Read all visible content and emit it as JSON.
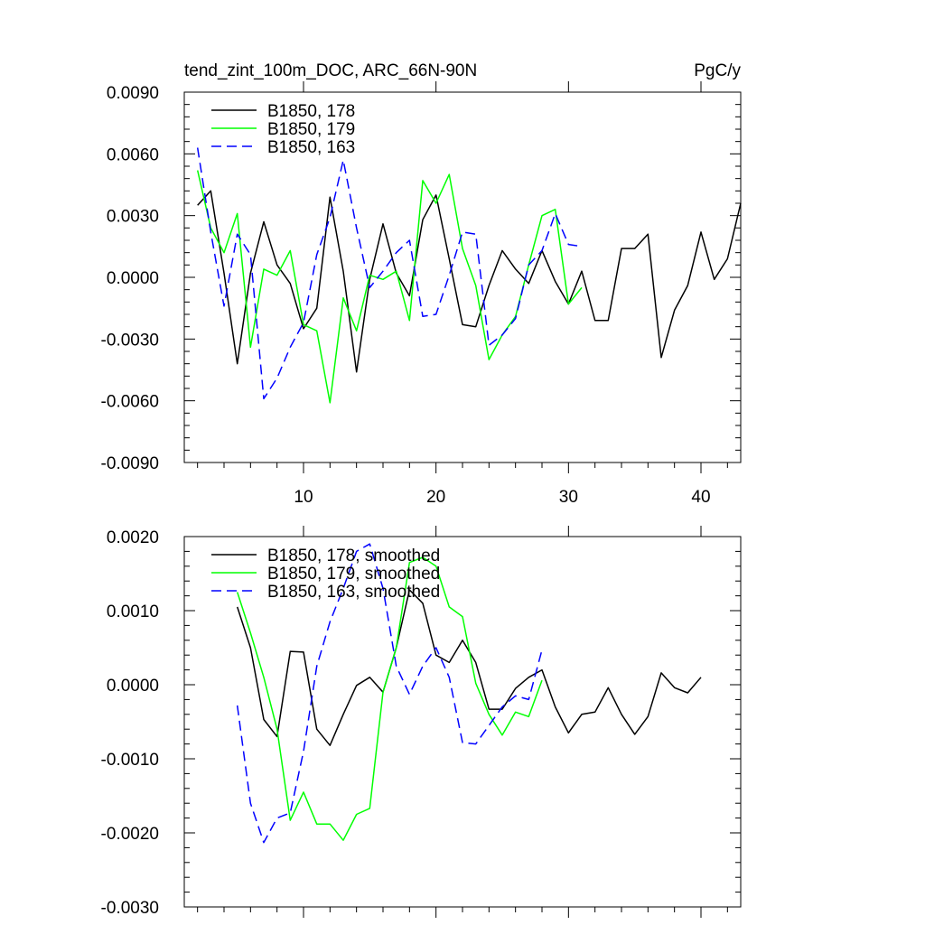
{
  "colors": {
    "series_178": "#000000",
    "series_179": "#00ff00",
    "series_163": "#0000ff"
  },
  "chart_data": [
    {
      "type": "line",
      "title": "tend_zint_100m_DOC, ARC_66N-90N",
      "units": "PgC/y",
      "xlabel": "",
      "ylabel": "",
      "xlim": [
        1,
        43
      ],
      "ylim": [
        -0.009,
        0.009
      ],
      "xticks": [
        10,
        20,
        30,
        40
      ],
      "xtick_labels": [
        "10",
        "20",
        "30",
        "40"
      ],
      "yticks": [
        -0.009,
        -0.006,
        -0.003,
        0,
        0.003,
        0.006,
        0.009
      ],
      "ytick_labels": [
        "-0.0090",
        "-0.0060",
        "-0.0030",
        "0.0000",
        "0.0030",
        "0.0060",
        "0.0090"
      ],
      "legend_position": "top-left",
      "series": [
        {
          "name": "B1850, 178",
          "color": "#000000",
          "dash": "solid",
          "x": [
            2,
            3,
            4,
            5,
            6,
            7,
            8,
            9,
            10,
            11,
            12,
            13,
            14,
            15,
            16,
            17,
            18,
            19,
            20,
            21,
            22,
            23,
            24,
            25,
            26,
            27,
            28,
            29,
            30,
            31,
            32,
            33,
            34,
            35,
            36,
            37,
            38,
            39,
            40,
            41,
            42,
            43
          ],
          "y": [
            0.0035,
            0.0042,
            0.0002,
            -0.0042,
            0.0002,
            0.0027,
            0.0006,
            -0.0003,
            -0.0025,
            -0.0015,
            0.0039,
            0.0003,
            -0.0046,
            -0.0001,
            0.0026,
            0.0002,
            -0.0009,
            0.0028,
            0.004,
            0.0009,
            -0.0023,
            -0.0024,
            -0.0004,
            0.0013,
            0.0004,
            -0.0003,
            0.0013,
            -0.0002,
            -0.0013,
            0.0003,
            -0.0021,
            -0.0021,
            0.0014,
            0.0014,
            0.0021,
            -0.0039,
            -0.0016,
            -0.0004,
            0.0022,
            -0.0001,
            0.0009,
            0.0036
          ]
        },
        {
          "name": "B1850, 179",
          "color": "#00ff00",
          "dash": "solid",
          "x": [
            2,
            3,
            4,
            5,
            6,
            7,
            8,
            9,
            10,
            11,
            12,
            13,
            14,
            15,
            16,
            17,
            18,
            19,
            20,
            21,
            22,
            23,
            24,
            25,
            26,
            27,
            28,
            29,
            30,
            31
          ],
          "y": [
            0.0052,
            0.0024,
            0.0012,
            0.0031,
            -0.0034,
            0.0004,
            0.0001,
            0.0013,
            -0.0023,
            -0.0026,
            -0.0061,
            -0.001,
            -0.0026,
            0.0001,
            -0.0001,
            0.0003,
            -0.0021,
            0.0047,
            0.0036,
            0.005,
            0.0014,
            -0.0004,
            -0.004,
            -0.0028,
            -0.0019,
            0.0006,
            0.003,
            0.0033,
            -0.0013,
            -0.0005
          ]
        },
        {
          "name": "B1850, 163",
          "color": "#0000ff",
          "dash": "dashed",
          "x": [
            2,
            3,
            4,
            5,
            6,
            7,
            8,
            9,
            10,
            11,
            12,
            13,
            14,
            15,
            16,
            17,
            18,
            19,
            20,
            21,
            22,
            23,
            24,
            25,
            26,
            27,
            28,
            29,
            30,
            31
          ],
          "y": [
            0.0063,
            0.0022,
            -0.0014,
            0.0021,
            0.0011,
            -0.0059,
            -0.0049,
            -0.0034,
            -0.0022,
            0.0011,
            0.0029,
            0.0057,
            0.0024,
            -0.0005,
            0.0003,
            0.0012,
            0.0018,
            -0.0019,
            -0.0018,
            0.0001,
            0.0022,
            0.0021,
            -0.0033,
            -0.0028,
            -0.002,
            0.0006,
            0.0013,
            0.0031,
            0.0016,
            0.0015
          ]
        }
      ]
    },
    {
      "type": "line",
      "title": "",
      "xlabel": "",
      "ylabel": "",
      "xlim": [
        1,
        43
      ],
      "ylim": [
        -0.003,
        0.002
      ],
      "xticks": [
        10,
        20,
        30,
        40
      ],
      "yticks": [
        -0.003,
        -0.002,
        -0.001,
        0,
        0.001,
        0.002
      ],
      "ytick_labels": [
        "-0.0030",
        "-0.0020",
        "-0.0010",
        "0.0000",
        "0.0010",
        "0.0020"
      ],
      "legend_position": "top-left",
      "series": [
        {
          "name": "B1850, 178, smoothed",
          "color": "#000000",
          "dash": "solid",
          "x": [
            5,
            6,
            7,
            8,
            9,
            10,
            11,
            12,
            13,
            14,
            15,
            16,
            17,
            18,
            19,
            20,
            21,
            22,
            23,
            24,
            25,
            26,
            27,
            28,
            29,
            30,
            31,
            32,
            33,
            34,
            35,
            36,
            37,
            38,
            39,
            40
          ],
          "y": [
            0.00105,
            0.0005,
            -0.00047,
            -0.0007,
            0.00045,
            0.00044,
            -0.0006,
            -0.00082,
            -0.0004,
            -1e-05,
            0.0001,
            -0.0001,
            0.0005,
            0.00128,
            0.0011,
            0.0004,
            0.0003,
            0.0006,
            0.0003,
            -0.00033,
            -0.00033,
            -5e-05,
            0.0001,
            0.0002,
            -0.0003,
            -0.00065,
            -0.0004,
            -0.00037,
            -4e-05,
            -0.0004,
            -0.00067,
            -0.00043,
            0.00016,
            -4e-05,
            -0.00011,
            0.0001
          ]
        },
        {
          "name": "B1850, 179, smoothed",
          "color": "#00ff00",
          "dash": "solid",
          "x": [
            5,
            6,
            7,
            8,
            9,
            10,
            11,
            12,
            13,
            14,
            15,
            16,
            17,
            18,
            19,
            20,
            21,
            22,
            23,
            24,
            25,
            26,
            27,
            28
          ],
          "y": [
            0.00125,
            0.0007,
            0.0001,
            -0.0006,
            -0.00183,
            -0.00145,
            -0.00188,
            -0.00188,
            -0.0021,
            -0.00175,
            -0.00167,
            -0.0001,
            0.0005,
            0.00165,
            0.00172,
            0.0016,
            0.00105,
            0.00092,
            2e-05,
            -0.0004,
            -0.00068,
            -0.00037,
            -0.00043,
            6e-05
          ]
        },
        {
          "name": "B1850, 163, smoothed",
          "color": "#0000ff",
          "dash": "dashed",
          "x": [
            5,
            6,
            7,
            8,
            9,
            10,
            11,
            12,
            13,
            14,
            15,
            16,
            17,
            18,
            19,
            20,
            21,
            22,
            23,
            24,
            25,
            26,
            27,
            28
          ],
          "y": [
            -0.00028,
            -0.0016,
            -0.00213,
            -0.0018,
            -0.00173,
            -0.0009,
            0.00025,
            0.00085,
            0.0013,
            0.0018,
            0.0019,
            0.0013,
            0.00025,
            -0.00013,
            0.00025,
            0.0005,
            0.0001,
            -0.00078,
            -0.0008,
            -0.00055,
            -0.0003,
            -0.00015,
            -0.0002,
            0.00047
          ]
        }
      ]
    }
  ]
}
